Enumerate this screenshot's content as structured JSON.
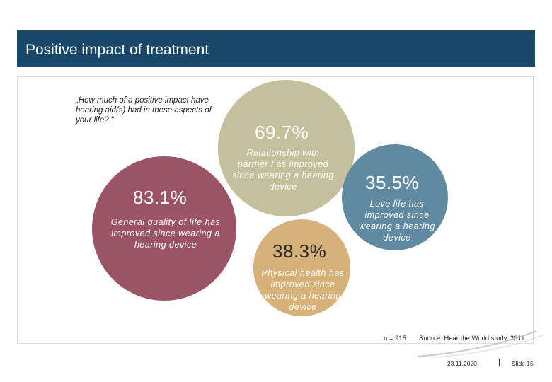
{
  "header": {
    "title": "Positive impact of treatment"
  },
  "question": "„How much of a positive impact have hearing aid(s) had in these aspects of your life? “",
  "bubbles": {
    "relationship": {
      "percent": "69.7%",
      "label": "Relationship with partner has improved since wearing a hearing device",
      "color": "#c4c09d"
    },
    "general": {
      "percent": "83.1%",
      "label": "General quality of life has improved since wearing a hearing device",
      "color": "#9c5366"
    },
    "love": {
      "percent": "35.5%",
      "label": "Love life has improved since wearing a hearing device",
      "color": "#5f8aa2"
    },
    "physical": {
      "percent": "38.3%",
      "label": "Physical health has improved since wearing a hearing device",
      "color": "#d8b178"
    }
  },
  "sample": "n = 915",
  "source": "Source: Hear the World study, 2011.",
  "footer": {
    "date": "23.11.2020",
    "slide_label": "Slide",
    "slide_number": "15"
  }
}
